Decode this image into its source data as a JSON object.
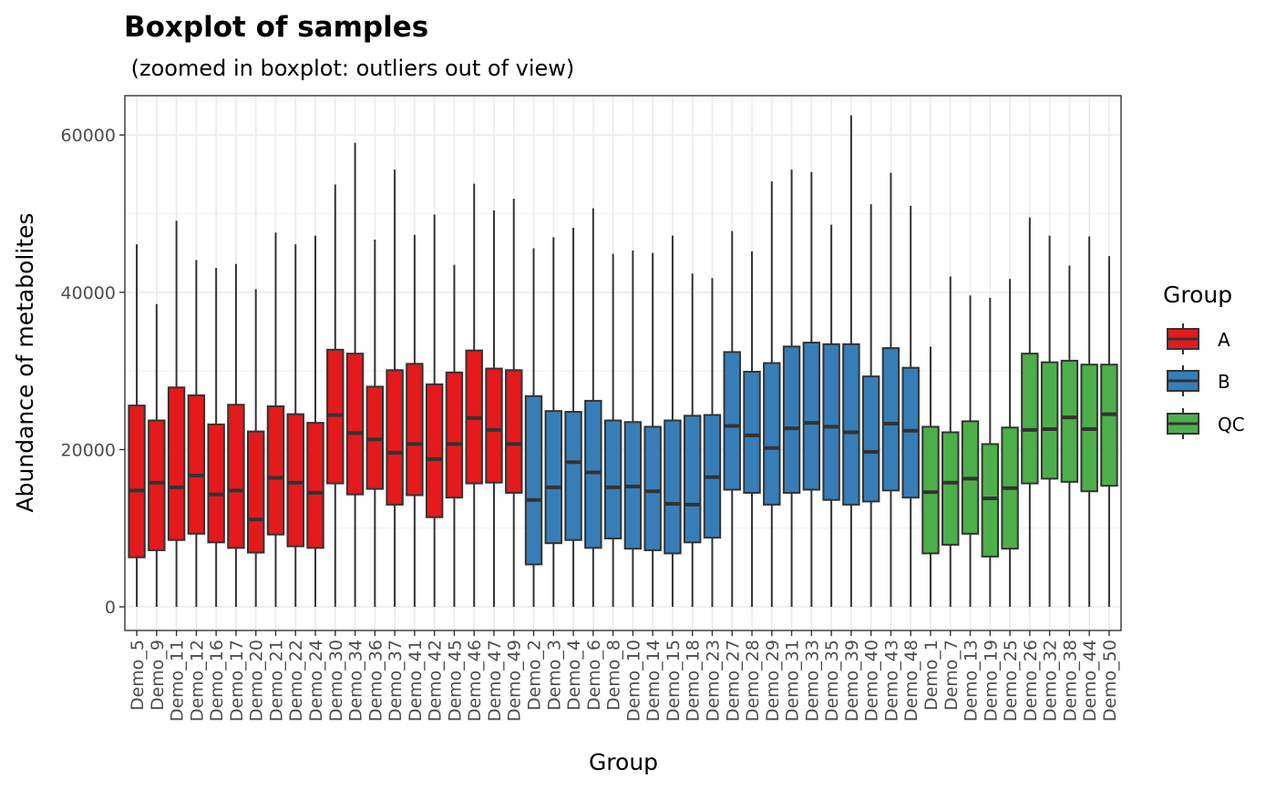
{
  "chart_data": {
    "type": "boxplot",
    "title": "Boxplot of samples",
    "subtitle": " (zoomed in boxplot: outliers out of view)",
    "xlabel": "Group",
    "ylabel": "Abundance of metabolites",
    "ylim": [
      -3000,
      65000
    ],
    "yticks": [
      0,
      20000,
      40000,
      60000
    ],
    "ytick_labels": [
      "0",
      "20000",
      "40000",
      "60000"
    ],
    "grid": true,
    "legend": {
      "title": "Group",
      "position": "right",
      "entries": [
        {
          "label": "A",
          "color": "#e41a1c"
        },
        {
          "label": "B",
          "color": "#377eb8"
        },
        {
          "label": "QC",
          "color": "#4daf4a"
        }
      ]
    },
    "colors": {
      "A": "#e41a1c",
      "B": "#377eb8",
      "QC": "#4daf4a",
      "box_outline": "#333333",
      "grid": "#ebebeb",
      "panel_border": "#333333"
    },
    "boxes": [
      {
        "label": "Demo_5",
        "group": "A",
        "min": 0,
        "q1": 6300,
        "median": 14800,
        "q3": 25600,
        "max": 46100
      },
      {
        "label": "Demo_9",
        "group": "A",
        "min": 0,
        "q1": 7200,
        "median": 15800,
        "q3": 23700,
        "max": 38500
      },
      {
        "label": "Demo_11",
        "group": "A",
        "min": 0,
        "q1": 8500,
        "median": 15200,
        "q3": 27900,
        "max": 49100
      },
      {
        "label": "Demo_12",
        "group": "A",
        "min": 0,
        "q1": 9300,
        "median": 16700,
        "q3": 26900,
        "max": 44100
      },
      {
        "label": "Demo_16",
        "group": "A",
        "min": 0,
        "q1": 8200,
        "median": 14300,
        "q3": 23200,
        "max": 43100
      },
      {
        "label": "Demo_17",
        "group": "A",
        "min": 0,
        "q1": 7500,
        "median": 14800,
        "q3": 25700,
        "max": 43600
      },
      {
        "label": "Demo_20",
        "group": "A",
        "min": 0,
        "q1": 6900,
        "median": 11100,
        "q3": 22300,
        "max": 40400
      },
      {
        "label": "Demo_21",
        "group": "A",
        "min": 0,
        "q1": 9200,
        "median": 16400,
        "q3": 25500,
        "max": 47600
      },
      {
        "label": "Demo_22",
        "group": "A",
        "min": 0,
        "q1": 7700,
        "median": 15800,
        "q3": 24500,
        "max": 46100
      },
      {
        "label": "Demo_24",
        "group": "A",
        "min": 0,
        "q1": 7500,
        "median": 14500,
        "q3": 23400,
        "max": 47200
      },
      {
        "label": "Demo_30",
        "group": "A",
        "min": 0,
        "q1": 15700,
        "median": 24400,
        "q3": 32700,
        "max": 53700
      },
      {
        "label": "Demo_34",
        "group": "A",
        "min": 0,
        "q1": 14300,
        "median": 22100,
        "q3": 32200,
        "max": 59000
      },
      {
        "label": "Demo_36",
        "group": "A",
        "min": 0,
        "q1": 15000,
        "median": 21300,
        "q3": 28000,
        "max": 46700
      },
      {
        "label": "Demo_37",
        "group": "A",
        "min": 0,
        "q1": 13000,
        "median": 19600,
        "q3": 30100,
        "max": 55600
      },
      {
        "label": "Demo_41",
        "group": "A",
        "min": 0,
        "q1": 14200,
        "median": 20700,
        "q3": 30900,
        "max": 47300
      },
      {
        "label": "Demo_42",
        "group": "A",
        "min": 0,
        "q1": 11400,
        "median": 18800,
        "q3": 28300,
        "max": 49900
      },
      {
        "label": "Demo_45",
        "group": "A",
        "min": 0,
        "q1": 13900,
        "median": 20700,
        "q3": 29800,
        "max": 43500
      },
      {
        "label": "Demo_46",
        "group": "A",
        "min": 0,
        "q1": 15700,
        "median": 24000,
        "q3": 32600,
        "max": 53800
      },
      {
        "label": "Demo_47",
        "group": "A",
        "min": 0,
        "q1": 15800,
        "median": 22500,
        "q3": 30300,
        "max": 50400
      },
      {
        "label": "Demo_49",
        "group": "A",
        "min": 0,
        "q1": 14500,
        "median": 20700,
        "q3": 30100,
        "max": 51900
      },
      {
        "label": "Demo_2",
        "group": "B",
        "min": 0,
        "q1": 5400,
        "median": 13600,
        "q3": 26800,
        "max": 45600
      },
      {
        "label": "Demo_3",
        "group": "B",
        "min": 0,
        "q1": 8100,
        "median": 15200,
        "q3": 24900,
        "max": 47000
      },
      {
        "label": "Demo_4",
        "group": "B",
        "min": 0,
        "q1": 8500,
        "median": 18400,
        "q3": 24800,
        "max": 48200
      },
      {
        "label": "Demo_6",
        "group": "B",
        "min": 0,
        "q1": 7500,
        "median": 17100,
        "q3": 26200,
        "max": 50700
      },
      {
        "label": "Demo_8",
        "group": "B",
        "min": 0,
        "q1": 8700,
        "median": 15200,
        "q3": 23700,
        "max": 44900
      },
      {
        "label": "Demo_10",
        "group": "B",
        "min": 0,
        "q1": 7400,
        "median": 15300,
        "q3": 23500,
        "max": 45300
      },
      {
        "label": "Demo_14",
        "group": "B",
        "min": 0,
        "q1": 7200,
        "median": 14700,
        "q3": 22900,
        "max": 45000
      },
      {
        "label": "Demo_15",
        "group": "B",
        "min": 0,
        "q1": 6800,
        "median": 13100,
        "q3": 23700,
        "max": 47200
      },
      {
        "label": "Demo_18",
        "group": "B",
        "min": 0,
        "q1": 8200,
        "median": 13000,
        "q3": 24300,
        "max": 42400
      },
      {
        "label": "Demo_23",
        "group": "B",
        "min": 0,
        "q1": 8800,
        "median": 16500,
        "q3": 24400,
        "max": 41800
      },
      {
        "label": "Demo_27",
        "group": "B",
        "min": 0,
        "q1": 14900,
        "median": 23000,
        "q3": 32400,
        "max": 47800
      },
      {
        "label": "Demo_28",
        "group": "B",
        "min": 0,
        "q1": 14500,
        "median": 21800,
        "q3": 29900,
        "max": 45200
      },
      {
        "label": "Demo_29",
        "group": "B",
        "min": 0,
        "q1": 13000,
        "median": 20200,
        "q3": 31000,
        "max": 54100
      },
      {
        "label": "Demo_31",
        "group": "B",
        "min": 0,
        "q1": 14500,
        "median": 22700,
        "q3": 33100,
        "max": 55600
      },
      {
        "label": "Demo_33",
        "group": "B",
        "min": 0,
        "q1": 14900,
        "median": 23400,
        "q3": 33600,
        "max": 55300
      },
      {
        "label": "Demo_35",
        "group": "B",
        "min": 0,
        "q1": 13600,
        "median": 22900,
        "q3": 33400,
        "max": 48600
      },
      {
        "label": "Demo_39",
        "group": "B",
        "min": 0,
        "q1": 13000,
        "median": 22200,
        "q3": 33400,
        "max": 62500
      },
      {
        "label": "Demo_40",
        "group": "B",
        "min": 0,
        "q1": 13400,
        "median": 19700,
        "q3": 29300,
        "max": 51200
      },
      {
        "label": "Demo_43",
        "group": "B",
        "min": 0,
        "q1": 14800,
        "median": 23300,
        "q3": 32900,
        "max": 55200
      },
      {
        "label": "Demo_48",
        "group": "B",
        "min": 0,
        "q1": 13900,
        "median": 22400,
        "q3": 30400,
        "max": 51000
      },
      {
        "label": "Demo_1",
        "group": "QC",
        "min": 0,
        "q1": 6800,
        "median": 14600,
        "q3": 22900,
        "max": 33100
      },
      {
        "label": "Demo_7",
        "group": "QC",
        "min": 0,
        "q1": 7900,
        "median": 15800,
        "q3": 22200,
        "max": 42000
      },
      {
        "label": "Demo_13",
        "group": "QC",
        "min": 0,
        "q1": 9300,
        "median": 16300,
        "q3": 23600,
        "max": 39600
      },
      {
        "label": "Demo_19",
        "group": "QC",
        "min": 0,
        "q1": 6400,
        "median": 13800,
        "q3": 20700,
        "max": 39300
      },
      {
        "label": "Demo_25",
        "group": "QC",
        "min": 0,
        "q1": 7400,
        "median": 15100,
        "q3": 22800,
        "max": 41700
      },
      {
        "label": "Demo_26",
        "group": "QC",
        "min": 0,
        "q1": 15700,
        "median": 22500,
        "q3": 32200,
        "max": 49500
      },
      {
        "label": "Demo_32",
        "group": "QC",
        "min": 0,
        "q1": 16300,
        "median": 22600,
        "q3": 31100,
        "max": 47200
      },
      {
        "label": "Demo_38",
        "group": "QC",
        "min": 0,
        "q1": 15900,
        "median": 24100,
        "q3": 31300,
        "max": 43400
      },
      {
        "label": "Demo_44",
        "group": "QC",
        "min": 0,
        "q1": 14700,
        "median": 22600,
        "q3": 30800,
        "max": 47100
      },
      {
        "label": "Demo_50",
        "group": "QC",
        "min": 0,
        "q1": 15400,
        "median": 24500,
        "q3": 30800,
        "max": 44600
      }
    ]
  }
}
